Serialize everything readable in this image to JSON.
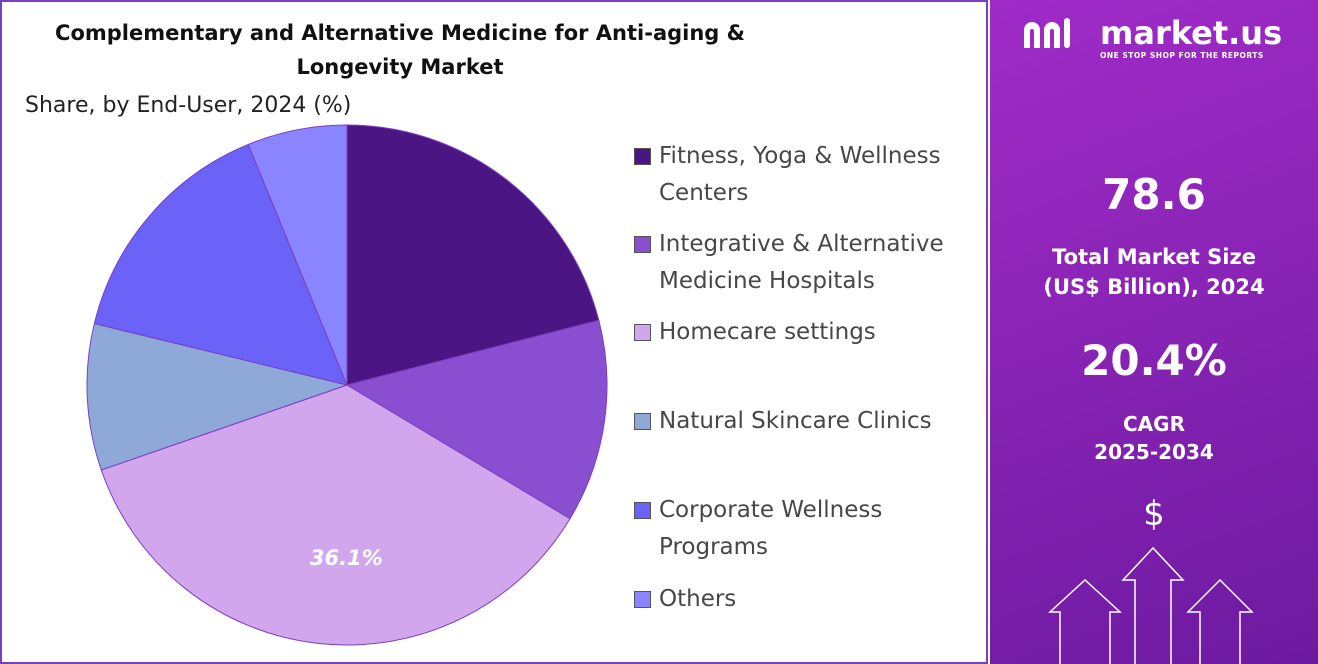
{
  "chart_data": {
    "type": "pie",
    "title": "Complementary and Alternative Medicine for Anti-aging & Longevity Market",
    "subtitle": "Share, by End-User, 2024 (%)",
    "categories": [
      "Fitness, Yoga & Wellness Centers",
      "Integrative & Alternative Medicine Hospitals",
      "Homecare settings",
      "Natural Skincare Clinics",
      "Corporate Wellness Programs",
      "Others"
    ],
    "values": [
      21.0,
      12.6,
      36.1,
      9.1,
      15.0,
      6.2
    ],
    "value_labels": [
      null,
      null,
      "36.1%",
      null,
      null,
      null
    ],
    "colors": [
      "#4b1683",
      "#8a4fd0",
      "#d2a6ec",
      "#8ea8d8",
      "#6b63f8",
      "#8a85ff"
    ],
    "legend": "right"
  },
  "panel": {
    "brand": "market.us",
    "tagline": "ONE STOP SHOP FOR THE REPORTS",
    "market_size": "78.6",
    "market_size_label": "Total Market Size (US$ Billion), 2024",
    "cagr": "20.4%",
    "cagr_label": "CAGR 2025-2034",
    "currency_icon": "$"
  }
}
